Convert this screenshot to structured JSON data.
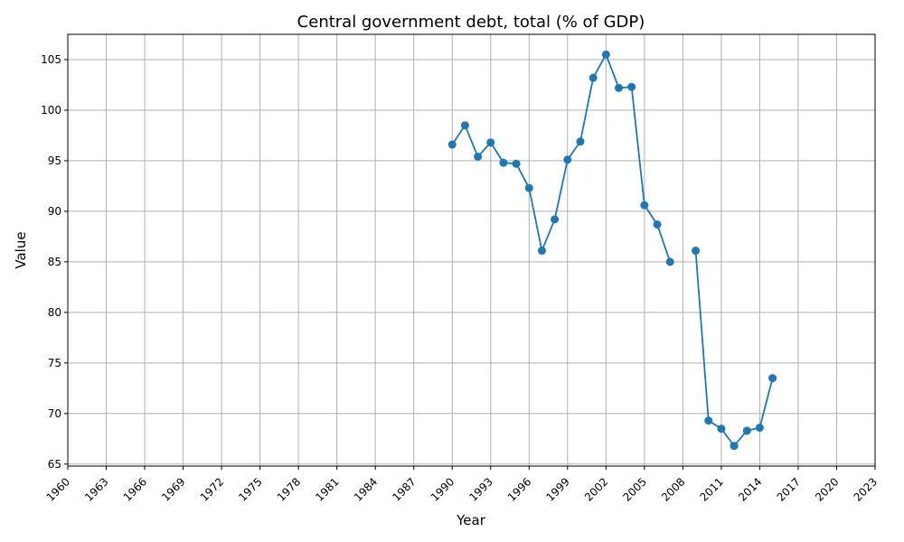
{
  "chart_data": {
    "type": "line",
    "title": "Central government debt, total (% of GDP)",
    "xlabel": "Year",
    "ylabel": "Value",
    "xlim": [
      1960,
      2023
    ],
    "ylim": [
      64.8,
      107.5
    ],
    "x_ticks": [
      "1960",
      "1963",
      "1966",
      "1969",
      "1972",
      "1975",
      "1978",
      "1981",
      "1984",
      "1987",
      "1990",
      "1993",
      "1996",
      "1999",
      "2002",
      "2005",
      "2008",
      "2011",
      "2014",
      "2017",
      "2020",
      "2023"
    ],
    "y_ticks": [
      65,
      70,
      75,
      80,
      85,
      90,
      95,
      100,
      105
    ],
    "grid": true,
    "color": "#1f77b4",
    "series": [
      {
        "x": [
          1990,
          1991,
          1992,
          1993,
          1994,
          1995,
          1996,
          1997,
          1998,
          1999,
          2000,
          2001,
          2002,
          2003,
          2004,
          2005,
          2006,
          2007,
          2008,
          2009,
          2010,
          2011,
          2012,
          2013,
          2014,
          2015
        ],
        "y": [
          96.6,
          98.5,
          95.4,
          96.8,
          94.8,
          94.7,
          92.3,
          86.1,
          89.2,
          95.1,
          96.9,
          103.2,
          105.5,
          102.2,
          102.3,
          90.6,
          88.7,
          85.0,
          null,
          86.1,
          69.3,
          68.5,
          66.8,
          68.3,
          68.6,
          73.5
        ]
      }
    ]
  }
}
